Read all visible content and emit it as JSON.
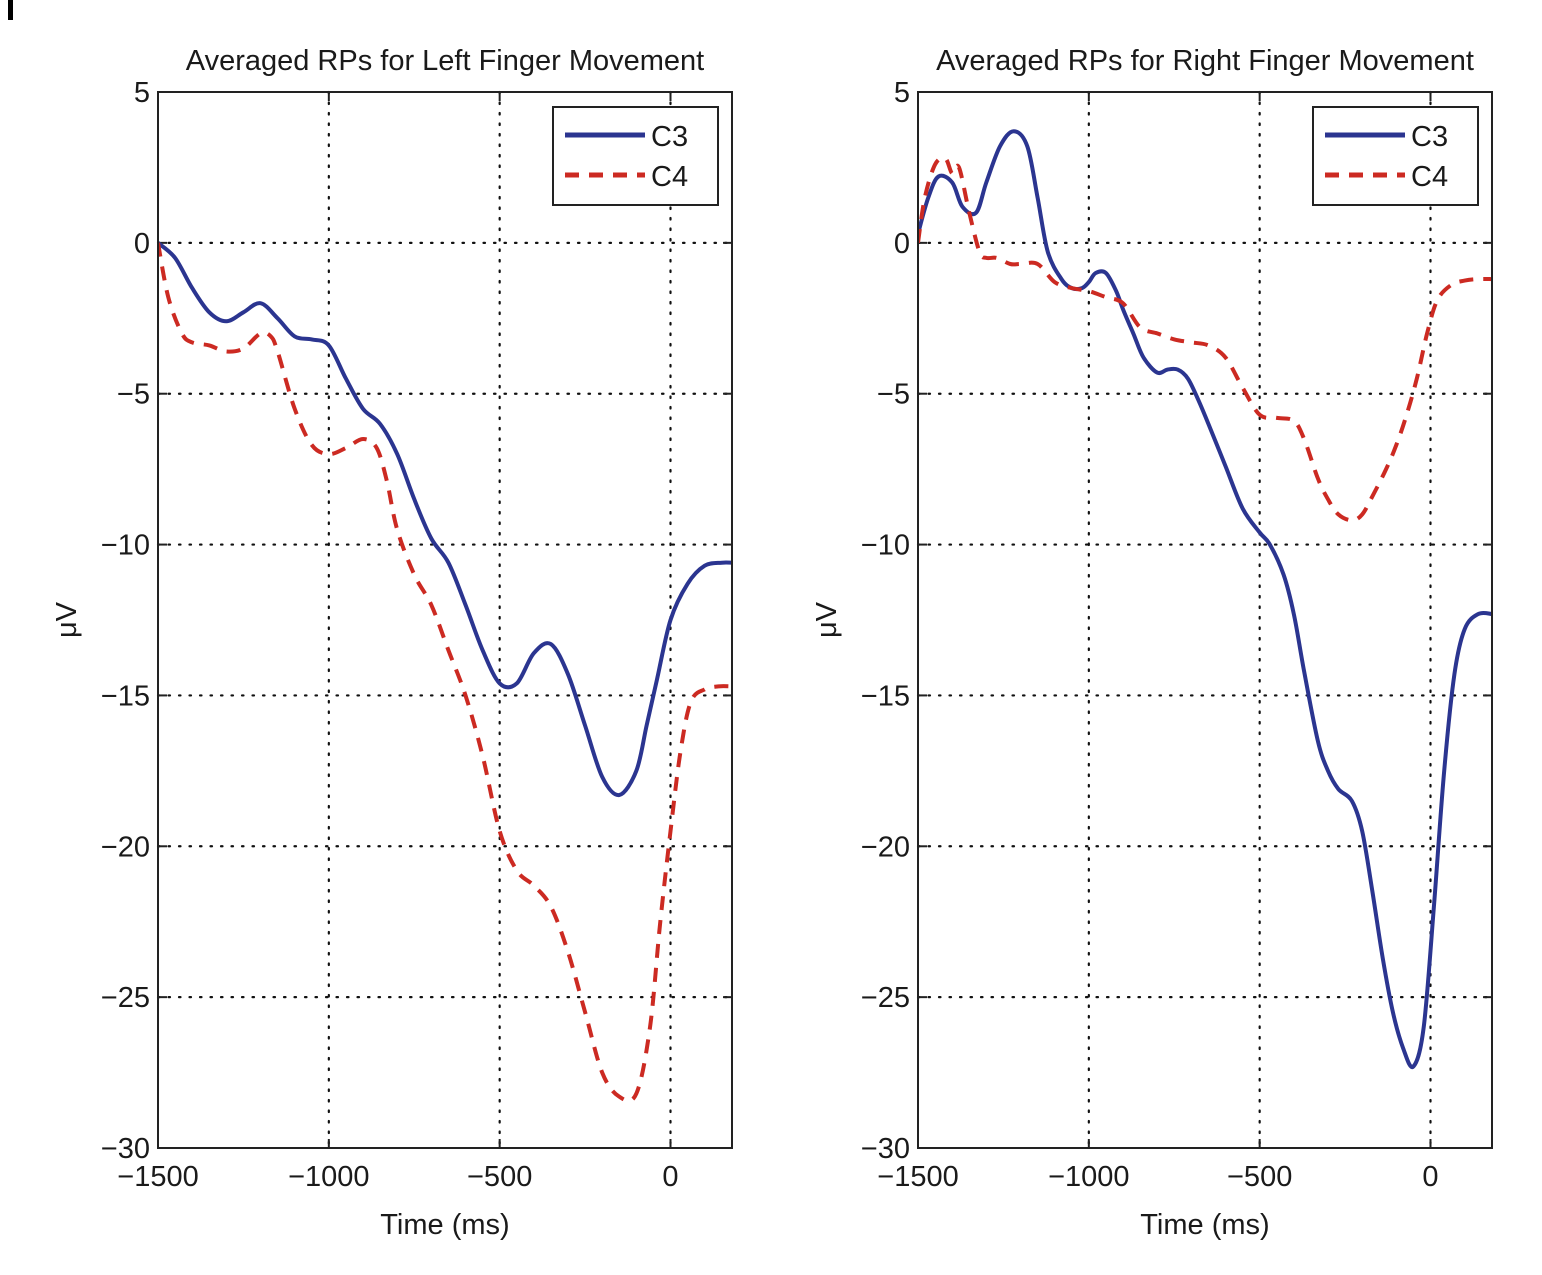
{
  "chart_data": [
    {
      "type": "line",
      "title": "Averaged RPs for Left Finger Movement",
      "xlabel": "Time (ms)",
      "ylabel": "μV",
      "xlim": [
        -1500,
        180
      ],
      "ylim": [
        -30,
        5
      ],
      "xticks": [
        -1500,
        -1000,
        -500,
        0
      ],
      "xtick_labels": [
        "−1500",
        "−1000",
        "−500",
        "0"
      ],
      "yticks": [
        5,
        0,
        -5,
        -10,
        -15,
        -20,
        -25,
        -30
      ],
      "ytick_labels": [
        "5",
        "0",
        "−5",
        "−10",
        "−15",
        "−20",
        "−25",
        "−30"
      ],
      "grid": true,
      "legend": "top-right",
      "series": [
        {
          "name": "C3",
          "style": "solid",
          "color": "#2b3590",
          "x": [
            -1500,
            -1450,
            -1400,
            -1350,
            -1300,
            -1250,
            -1200,
            -1150,
            -1100,
            -1050,
            -1000,
            -950,
            -900,
            -850,
            -800,
            -750,
            -700,
            -650,
            -600,
            -550,
            -500,
            -450,
            -400,
            -350,
            -300,
            -250,
            -200,
            -150,
            -100,
            -70,
            -40,
            0,
            50,
            100,
            150,
            180
          ],
          "y": [
            0,
            -0.5,
            -1.5,
            -2.3,
            -2.6,
            -2.3,
            -2.0,
            -2.5,
            -3.1,
            -3.2,
            -3.4,
            -4.5,
            -5.5,
            -6.0,
            -7.0,
            -8.5,
            -9.8,
            -10.6,
            -12.0,
            -13.5,
            -14.6,
            -14.6,
            -13.6,
            -13.3,
            -14.3,
            -16.0,
            -17.7,
            -18.3,
            -17.5,
            -16.0,
            -14.5,
            -12.5,
            -11.3,
            -10.7,
            -10.6,
            -10.6
          ]
        },
        {
          "name": "C4",
          "style": "dashed",
          "color": "#cc2a22",
          "x": [
            -1500,
            -1470,
            -1430,
            -1400,
            -1350,
            -1300,
            -1250,
            -1200,
            -1170,
            -1150,
            -1100,
            -1050,
            -1000,
            -950,
            -900,
            -860,
            -830,
            -800,
            -750,
            -700,
            -650,
            -600,
            -550,
            -500,
            -450,
            -400,
            -350,
            -300,
            -250,
            -200,
            -150,
            -100,
            -60,
            -30,
            0,
            30,
            60,
            100,
            140,
            180
          ],
          "y": [
            0,
            -1.8,
            -3.0,
            -3.3,
            -3.4,
            -3.6,
            -3.5,
            -3.0,
            -3.1,
            -3.6,
            -5.5,
            -6.7,
            -7.0,
            -6.8,
            -6.5,
            -6.8,
            -7.9,
            -9.5,
            -11.0,
            -12.0,
            -13.5,
            -15.0,
            -17.0,
            -19.5,
            -20.8,
            -21.3,
            -22.0,
            -23.5,
            -25.5,
            -27.5,
            -28.3,
            -28.2,
            -26.0,
            -22.5,
            -19.5,
            -16.8,
            -15.2,
            -14.8,
            -14.7,
            -14.7
          ]
        }
      ]
    },
    {
      "type": "line",
      "title": "Averaged RPs for Right Finger Movement",
      "xlabel": "Time (ms)",
      "ylabel": "μV",
      "xlim": [
        -1500,
        180
      ],
      "ylim": [
        -30,
        5
      ],
      "xticks": [
        -1500,
        -1000,
        -500,
        0
      ],
      "xtick_labels": [
        "−1500",
        "−1000",
        "−500",
        "0"
      ],
      "yticks": [
        5,
        0,
        -5,
        -10,
        -15,
        -20,
        -25,
        -30
      ],
      "ytick_labels": [
        "5",
        "0",
        "−5",
        "−10",
        "−15",
        "−20",
        "−25",
        "−30"
      ],
      "grid": true,
      "legend": "top-right",
      "series": [
        {
          "name": "C3",
          "style": "solid",
          "color": "#2b3590",
          "x": [
            -1500,
            -1470,
            -1440,
            -1400,
            -1370,
            -1330,
            -1300,
            -1260,
            -1220,
            -1180,
            -1150,
            -1120,
            -1080,
            -1050,
            -1020,
            -1000,
            -980,
            -950,
            -920,
            -900,
            -870,
            -840,
            -800,
            -770,
            -740,
            -710,
            -680,
            -650,
            -600,
            -550,
            -500,
            -470,
            -430,
            -400,
            -370,
            -330,
            -300,
            -270,
            -230,
            -200,
            -170,
            -140,
            -110,
            -80,
            -50,
            -20,
            10,
            40,
            70,
            100,
            140,
            180
          ],
          "y": [
            0.3,
            1.5,
            2.2,
            2.0,
            1.2,
            1.0,
            2.0,
            3.2,
            3.7,
            3.2,
            1.5,
            -0.3,
            -1.2,
            -1.5,
            -1.5,
            -1.3,
            -1.0,
            -1.0,
            -1.6,
            -2.2,
            -3.0,
            -3.8,
            -4.3,
            -4.2,
            -4.2,
            -4.5,
            -5.2,
            -6.0,
            -7.4,
            -8.8,
            -9.6,
            -10.0,
            -11.0,
            -12.3,
            -14.2,
            -16.5,
            -17.5,
            -18.1,
            -18.5,
            -19.5,
            -21.5,
            -23.7,
            -25.5,
            -26.7,
            -27.3,
            -26.0,
            -22.0,
            -17.5,
            -14.3,
            -12.8,
            -12.3,
            -12.3
          ]
        },
        {
          "name": "C4",
          "style": "dashed",
          "color": "#cc2a22",
          "x": [
            -1500,
            -1480,
            -1450,
            -1420,
            -1400,
            -1380,
            -1350,
            -1320,
            -1300,
            -1270,
            -1230,
            -1200,
            -1150,
            -1100,
            -1050,
            -1000,
            -950,
            -900,
            -850,
            -800,
            -750,
            -700,
            -650,
            -600,
            -550,
            -500,
            -450,
            -400,
            -370,
            -330,
            -300,
            -270,
            -230,
            -200,
            -170,
            -130,
            -100,
            -70,
            -40,
            -10,
            20,
            60,
            100,
            140,
            180
          ],
          "y": [
            0,
            1.5,
            2.6,
            2.8,
            2.3,
            2.5,
            1.0,
            -0.3,
            -0.5,
            -0.5,
            -0.7,
            -0.7,
            -0.7,
            -1.3,
            -1.5,
            -1.6,
            -1.8,
            -2.0,
            -2.8,
            -3.0,
            -3.2,
            -3.3,
            -3.4,
            -3.8,
            -4.8,
            -5.7,
            -5.8,
            -5.9,
            -6.5,
            -7.8,
            -8.5,
            -9.0,
            -9.2,
            -9.0,
            -8.4,
            -7.5,
            -6.7,
            -5.7,
            -4.5,
            -3.0,
            -1.9,
            -1.4,
            -1.25,
            -1.2,
            -1.2
          ]
        }
      ]
    }
  ]
}
